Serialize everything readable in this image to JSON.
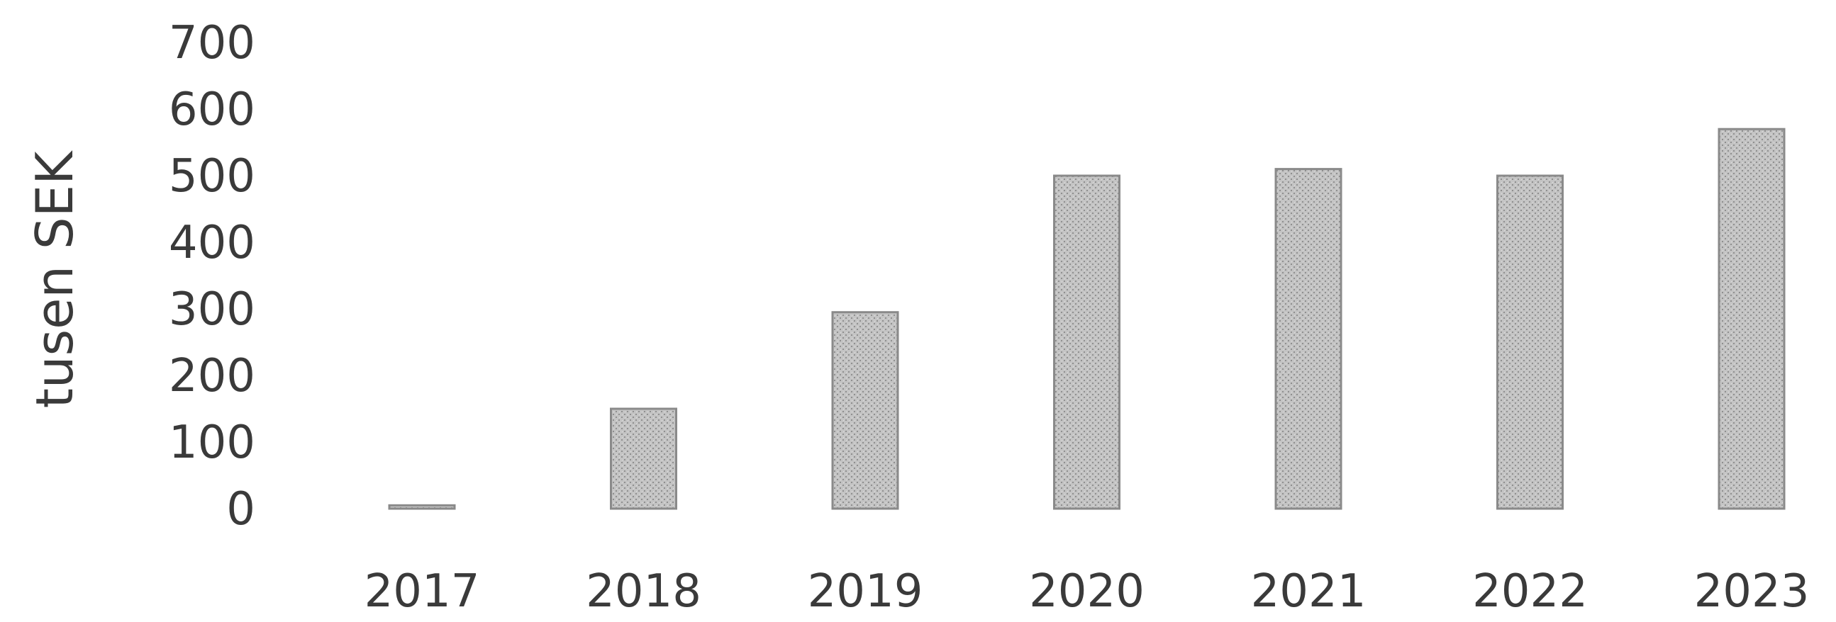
{
  "chart_data": {
    "type": "bar",
    "categories": [
      "2017",
      "2018",
      "2019",
      "2020",
      "2021",
      "2022",
      "2023"
    ],
    "values": [
      5,
      150,
      295,
      500,
      510,
      500,
      570
    ],
    "title": "",
    "xlabel": "",
    "ylabel": "tusen SEK",
    "ylim": [
      0,
      700
    ],
    "yticks": [
      0,
      100,
      200,
      300,
      400,
      500,
      600,
      700
    ],
    "grid": false,
    "legend": "none",
    "bar_color": "#b5b5b5"
  }
}
